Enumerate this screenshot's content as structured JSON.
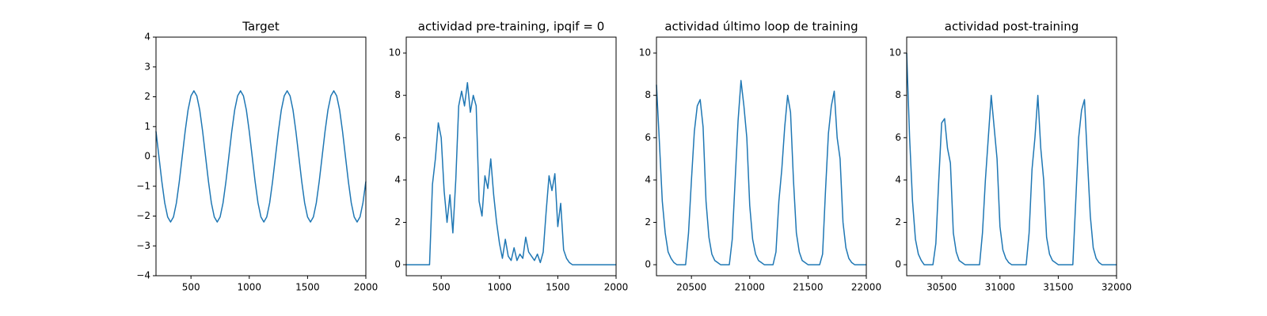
{
  "chart_data": [
    {
      "type": "line",
      "title": "Target",
      "color": "#1f77b4",
      "x": [
        200,
        225,
        250,
        275,
        300,
        325,
        350,
        375,
        400,
        425,
        450,
        475,
        500,
        525,
        550,
        575,
        600,
        625,
        650,
        675,
        700,
        725,
        750,
        775,
        800,
        825,
        850,
        875,
        900,
        925,
        950,
        975,
        1000,
        1025,
        1050,
        1075,
        1100,
        1125,
        1150,
        1175,
        1200,
        1225,
        1250,
        1275,
        1300,
        1325,
        1350,
        1375,
        1400,
        1425,
        1450,
        1475,
        1500,
        1525,
        1550,
        1575,
        1600,
        1625,
        1650,
        1675,
        1700,
        1725,
        1750,
        1775,
        1800,
        1825,
        1850,
        1875,
        1900,
        1925,
        1950,
        1975,
        2000
      ],
      "values": [
        0.84,
        0,
        -0.84,
        -1.56,
        -2.03,
        -2.2,
        -2.03,
        -1.56,
        -0.84,
        0,
        0.84,
        1.56,
        2.03,
        2.2,
        2.03,
        1.56,
        0.84,
        0,
        -0.84,
        -1.56,
        -2.03,
        -2.2,
        -2.03,
        -1.56,
        -0.84,
        0,
        0.84,
        1.56,
        2.03,
        2.2,
        2.03,
        1.56,
        0.84,
        0,
        -0.84,
        -1.56,
        -2.03,
        -2.2,
        -2.03,
        -1.56,
        -0.84,
        0,
        0.84,
        1.56,
        2.03,
        2.2,
        2.03,
        1.56,
        0.84,
        0,
        -0.84,
        -1.56,
        -2.03,
        -2.2,
        -2.03,
        -1.56,
        -0.84,
        0,
        0.84,
        1.56,
        2.03,
        2.2,
        2.03,
        1.56,
        0.84,
        0,
        -0.84,
        -1.56,
        -2.03,
        -2.2,
        -2.03,
        -1.56,
        -0.84
      ],
      "xlim": [
        200,
        2000
      ],
      "xticks": [
        500,
        1000,
        1500,
        2000
      ],
      "ylim": [
        -4,
        4
      ],
      "yticks": [
        {
          "value": -4,
          "label": "−4"
        },
        {
          "value": -3,
          "label": "−3"
        },
        {
          "value": -2,
          "label": "−2"
        },
        {
          "value": -1,
          "label": "−1"
        },
        0,
        1,
        2,
        3,
        4
      ]
    },
    {
      "type": "line",
      "title": "actividad pre-training, ipqif = 0",
      "color": "#1f77b4",
      "x": [
        200,
        225,
        250,
        275,
        300,
        325,
        350,
        375,
        400,
        425,
        450,
        475,
        500,
        525,
        550,
        575,
        600,
        625,
        650,
        675,
        700,
        725,
        750,
        775,
        800,
        825,
        850,
        875,
        900,
        925,
        950,
        975,
        1000,
        1025,
        1050,
        1075,
        1100,
        1125,
        1150,
        1175,
        1200,
        1225,
        1250,
        1275,
        1300,
        1325,
        1350,
        1375,
        1400,
        1425,
        1450,
        1475,
        1500,
        1525,
        1550,
        1575,
        1600,
        1625,
        1650,
        1675,
        1700,
        1725,
        1750,
        1775,
        1800,
        1825,
        1850,
        1875,
        1900,
        1925,
        1950,
        1975,
        2000
      ],
      "values": [
        0,
        0,
        0,
        0,
        0,
        0,
        0,
        0,
        0,
        3.8,
        5,
        6.7,
        6,
        3.5,
        2,
        3.3,
        1.5,
        4,
        7.5,
        8.2,
        7.5,
        8.6,
        7.2,
        8,
        7.5,
        3,
        2.3,
        4.2,
        3.6,
        5,
        3.3,
        2,
        1,
        0.3,
        1.2,
        0.4,
        0.2,
        0.8,
        0.2,
        0.5,
        0.3,
        1.3,
        0.6,
        0.4,
        0.2,
        0.5,
        0.1,
        0.6,
        2.5,
        4.2,
        3.5,
        4.3,
        1.8,
        2.9,
        0.7,
        0.3,
        0.1,
        0,
        0,
        0,
        0,
        0,
        0,
        0,
        0,
        0,
        0,
        0,
        0,
        0,
        0,
        0,
        0
      ],
      "xlim": [
        200,
        2000
      ],
      "xticks": [
        500,
        1000,
        1500,
        2000
      ],
      "ylim": [
        -0.52,
        10.75
      ],
      "yticks": [
        0,
        2,
        4,
        6,
        8,
        10
      ]
    },
    {
      "type": "line",
      "title": "actividad último loop de training",
      "color": "#1f77b4",
      "x": [
        20200,
        20225,
        20250,
        20275,
        20300,
        20325,
        20350,
        20375,
        20400,
        20425,
        20450,
        20475,
        20500,
        20525,
        20550,
        20575,
        20600,
        20625,
        20650,
        20675,
        20700,
        20725,
        20750,
        20775,
        20800,
        20825,
        20850,
        20875,
        20900,
        20925,
        20950,
        20975,
        21000,
        21025,
        21050,
        21075,
        21100,
        21125,
        21150,
        21175,
        21200,
        21225,
        21250,
        21275,
        21300,
        21325,
        21350,
        21375,
        21400,
        21425,
        21450,
        21475,
        21500,
        21525,
        21550,
        21575,
        21600,
        21625,
        21650,
        21675,
        21700,
        21725,
        21750,
        21775,
        21800,
        21825,
        21850,
        21875,
        21900,
        21925,
        21950,
        21975,
        22000
      ],
      "values": [
        8.5,
        5.8,
        3,
        1.5,
        0.6,
        0.3,
        0.1,
        0,
        0,
        0,
        0,
        1.5,
        4,
        6.3,
        7.5,
        7.8,
        6.5,
        3,
        1.3,
        0.5,
        0.2,
        0.1,
        0,
        0,
        0,
        0,
        1.2,
        4,
        6.8,
        8.7,
        7.5,
        6,
        2.8,
        1.2,
        0.5,
        0.2,
        0.1,
        0,
        0,
        0,
        0,
        0.6,
        3,
        4.5,
        6.5,
        8,
        7.2,
        4,
        1.5,
        0.6,
        0.2,
        0.1,
        0,
        0,
        0,
        0,
        0,
        0.5,
        3.5,
        6.2,
        7.5,
        8.2,
        6,
        5,
        2,
        0.8,
        0.3,
        0.1,
        0,
        0,
        0,
        0,
        0
      ],
      "xlim": [
        20200,
        22000
      ],
      "xticks": [
        20500,
        21000,
        21500,
        22000
      ],
      "ylim": [
        -0.52,
        10.75
      ],
      "yticks": [
        0,
        2,
        4,
        6,
        8,
        10
      ]
    },
    {
      "type": "line",
      "title": "actividad post-training",
      "color": "#1f77b4",
      "x": [
        30200,
        30225,
        30250,
        30275,
        30300,
        30325,
        30350,
        30375,
        30400,
        30425,
        30450,
        30475,
        30500,
        30525,
        30550,
        30575,
        30600,
        30625,
        30650,
        30675,
        30700,
        30725,
        30750,
        30775,
        30800,
        30825,
        30850,
        30875,
        30900,
        30925,
        30950,
        30975,
        31000,
        31025,
        31050,
        31075,
        31100,
        31125,
        31150,
        31175,
        31200,
        31225,
        31250,
        31275,
        31300,
        31325,
        31350,
        31375,
        31400,
        31425,
        31450,
        31475,
        31500,
        31525,
        31550,
        31575,
        31600,
        31625,
        31650,
        31675,
        31700,
        31725,
        31750,
        31775,
        31800,
        31825,
        31850,
        31875,
        31900,
        31925,
        31950,
        31975,
        32000
      ],
      "values": [
        10,
        6,
        3,
        1.2,
        0.5,
        0.2,
        0,
        0,
        0,
        0,
        1,
        4,
        6.7,
        6.9,
        5.5,
        4.8,
        1.5,
        0.6,
        0.2,
        0.1,
        0,
        0,
        0,
        0,
        0,
        0,
        1.5,
        4,
        6,
        8,
        6.5,
        5,
        1.8,
        0.7,
        0.3,
        0.1,
        0,
        0,
        0,
        0,
        0,
        0,
        1.5,
        4.5,
        6,
        8,
        5.5,
        4,
        1.3,
        0.5,
        0.2,
        0.1,
        0,
        0,
        0,
        0,
        0,
        0,
        3,
        6,
        7.3,
        7.8,
        5,
        2.3,
        0.8,
        0.3,
        0.1,
        0,
        0,
        0,
        0,
        0,
        0
      ],
      "xlim": [
        30200,
        32000
      ],
      "xticks": [
        30500,
        31000,
        31500,
        32000
      ],
      "ylim": [
        -0.52,
        10.75
      ],
      "yticks": [
        0,
        2,
        4,
        6,
        8,
        10
      ]
    }
  ]
}
